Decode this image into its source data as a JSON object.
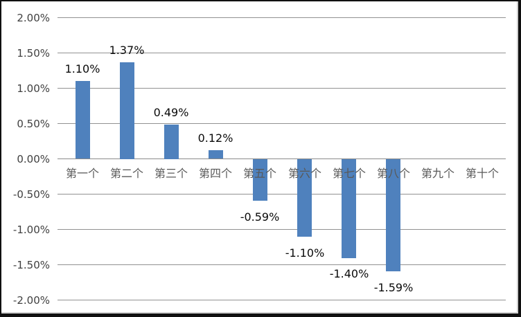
{
  "chart_data": {
    "type": "bar",
    "title": "",
    "xlabel": "",
    "ylabel": "",
    "grid": true,
    "legend": false,
    "ylim": [
      -2.0,
      2.0
    ],
    "y_tick_step": 0.5,
    "categories": [
      "第一个",
      "第二个",
      "第三个",
      "第四个",
      "第五个",
      "第六个",
      "第七个",
      "第八个",
      "第九个",
      "第十个"
    ],
    "values": [
      1.1,
      1.37,
      0.49,
      0.12,
      -0.59,
      -1.1,
      -1.4,
      -1.59,
      0,
      0
    ],
    "data_labels": [
      "1.10%",
      "1.37%",
      "0.49%",
      "0.12%",
      "-0.59%",
      "-1.10%",
      "-1.40%",
      "-1.59%",
      "",
      ""
    ],
    "y_ticks": [
      "2.00%",
      "1.50%",
      "1.00%",
      "0.50%",
      "0.00%",
      "-0.50%",
      "-1.00%",
      "-1.50%",
      "-2.00%"
    ],
    "y_tick_values": [
      2.0,
      1.5,
      1.0,
      0.5,
      0.0,
      -0.5,
      -1.0,
      -1.5,
      -2.0
    ],
    "colors": {
      "bar": "#4F81BD",
      "gridline": "#919191",
      "zero_axis": "#8a8a8a",
      "tick_label": "#3f3f3f",
      "category_label": "#595959",
      "data_label": "#0a0a0a",
      "background": "#FFFFFF",
      "frame_border": "#101010"
    }
  }
}
